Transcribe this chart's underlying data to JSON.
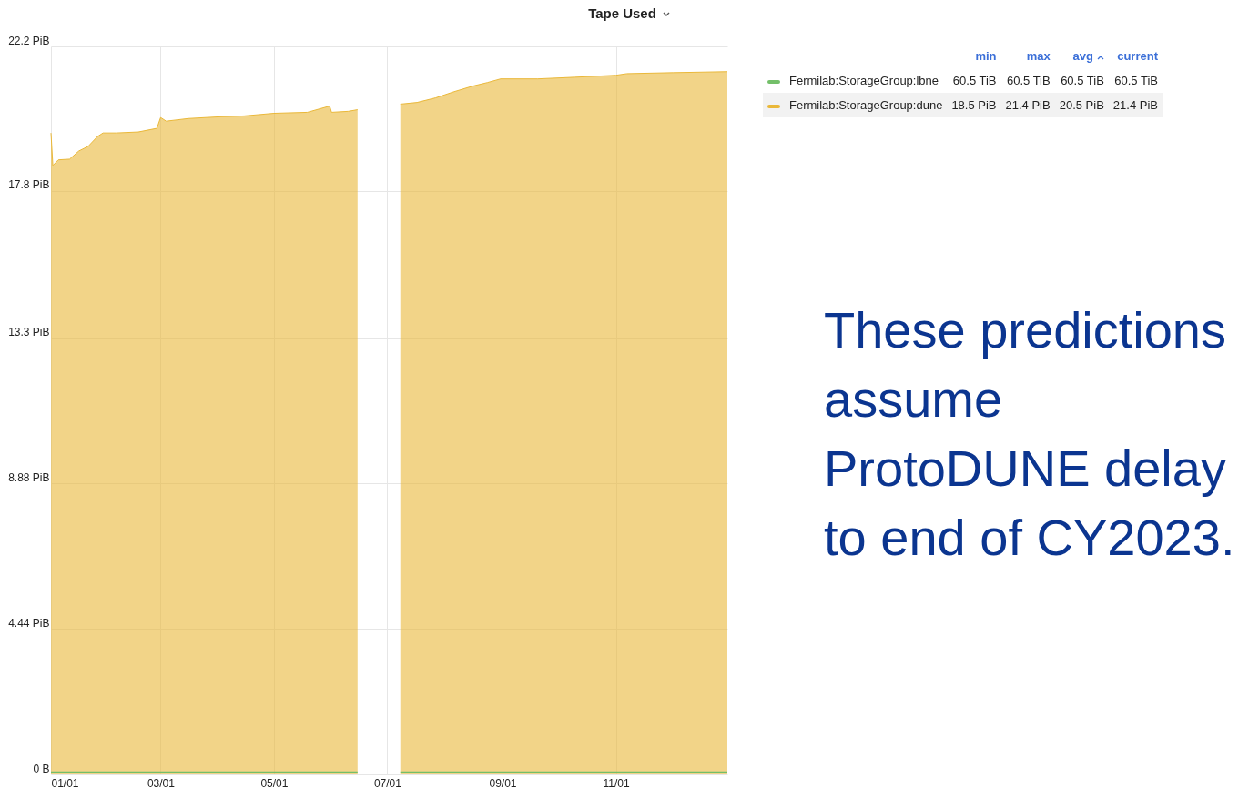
{
  "chart_data": {
    "type": "area",
    "title": "Tape Used",
    "x": [
      "--01-01",
      "--01-02",
      "--01-05",
      "--01-11",
      "--01-16",
      "--01-21",
      "--01-26",
      "--01-29",
      "--02-05",
      "--02-17",
      "--02-27",
      "--03-01",
      "--03-04",
      "--03-16",
      "--04-01",
      "--04-15",
      "--05-01",
      "--05-19",
      "--05-31",
      "--06-01",
      "--06-10",
      "--06-15",
      "--07-01",
      "--07-08",
      "--07-17",
      "--07-27",
      "--08-06",
      "--08-16",
      "--08-24",
      "--08-31",
      "--09-20",
      "--10-10",
      "--11-01",
      "--11-07",
      "--12-02",
      "--12-31"
    ],
    "series": [
      {
        "name": "Fermilab:StorageGroup:lbne",
        "type": "line",
        "color": "#73bf69",
        "values": [
          0.0591,
          0.0591,
          0.0591,
          0.0591,
          0.0591,
          0.0591,
          0.0591,
          0.0591,
          0.0591,
          0.0591,
          0.0591,
          0.0591,
          0.0591,
          0.0591,
          0.0591,
          0.0591,
          0.0591,
          0.0591,
          0.0591,
          0.0591,
          0.0591,
          0.0591,
          null,
          0.0591,
          0.0591,
          0.0591,
          0.0591,
          0.0591,
          0.0591,
          0.0591,
          0.0591,
          0.0591,
          0.0591,
          0.0591,
          0.0591,
          0.0591
        ]
      },
      {
        "name": "Fermilab:StorageGroup:dune",
        "color": "#eab839",
        "values": [
          19.56,
          18.57,
          18.74,
          18.76,
          19.01,
          19.15,
          19.45,
          19.56,
          19.56,
          19.59,
          19.7,
          20.03,
          19.92,
          20.0,
          20.05,
          20.08,
          20.16,
          20.19,
          20.38,
          20.19,
          20.22,
          20.27,
          null,
          20.44,
          20.49,
          20.63,
          20.82,
          20.99,
          21.1,
          21.21,
          21.21,
          21.26,
          21.32,
          21.37,
          21.4,
          21.43
        ]
      }
    ],
    "xlim": [
      "--01-01",
      "--12-31"
    ],
    "xticks": [
      {
        "value": "--01-01",
        "label": "01/01"
      },
      {
        "value": "--03-01",
        "label": "03/01"
      },
      {
        "value": "--05-01",
        "label": "05/01"
      },
      {
        "value": "--07-01",
        "label": "07/01"
      },
      {
        "value": "--09-01",
        "label": "09/01"
      },
      {
        "value": "--11-01",
        "label": "11/01"
      }
    ],
    "ylim": [
      0,
      22.2
    ],
    "yticks": [
      {
        "value": 0,
        "label": "0 B"
      },
      {
        "value": 4.44,
        "label": "4.44 PiB"
      },
      {
        "value": 8.88,
        "label": "8.88 PiB"
      },
      {
        "value": 13.3,
        "label": "13.3 PiB"
      },
      {
        "value": 17.8,
        "label": "17.8 PiB"
      },
      {
        "value": 22.2,
        "label": "22.2 PiB"
      }
    ],
    "grid": true,
    "legend": "top right",
    "annotations": [
      "min",
      "max",
      "avg",
      "current",
      "60.5 TiB",
      "60.5 TiB",
      "60.5 TiB",
      "60.5 TiB",
      "18.5 PiB",
      "21.4 PiB",
      "20.5 PiB",
      "21.4 PiB",
      "These predictions assume ProtoDUNE delay to end of CY2023."
    ]
  }
}
